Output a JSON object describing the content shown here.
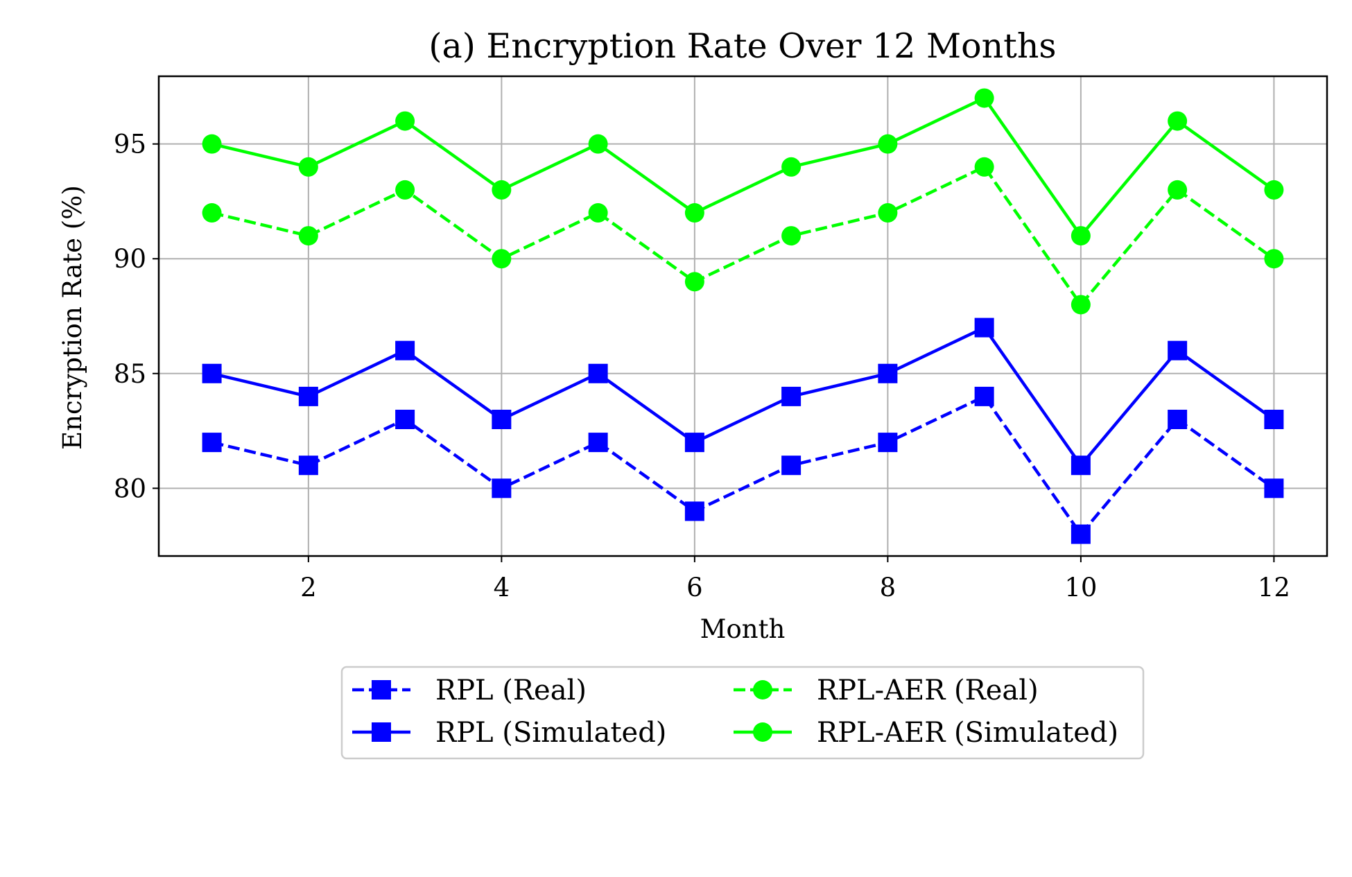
{
  "chart_data": {
    "type": "line",
    "title": "(a) Encryption Rate Over 12 Months",
    "xlabel": "Month",
    "ylabel": "Encryption Rate (%)",
    "x": [
      1,
      2,
      3,
      4,
      5,
      6,
      7,
      8,
      9,
      10,
      11,
      12
    ],
    "xlim": [
      0.45,
      12.55
    ],
    "ylim": [
      77.05,
      97.95
    ],
    "xticks": [
      2,
      4,
      6,
      8,
      10,
      12
    ],
    "yticks": [
      80,
      85,
      90,
      95
    ],
    "grid": true,
    "legend_position": "below the plot, two columns",
    "series": [
      {
        "name": "RPL (Real)",
        "color": "#0000ff",
        "line": "dashed",
        "marker": "square",
        "values": [
          82,
          81,
          83,
          80,
          82,
          79,
          81,
          82,
          84,
          78,
          83,
          80
        ]
      },
      {
        "name": "RPL (Simulated)",
        "color": "#0000ff",
        "line": "solid",
        "marker": "square",
        "values": [
          85,
          84,
          86,
          83,
          85,
          82,
          84,
          85,
          87,
          81,
          86,
          83
        ]
      },
      {
        "name": "RPL-AER (Real)",
        "color": "#00ff00",
        "line": "dashed",
        "marker": "circle",
        "values": [
          92,
          91,
          93,
          90,
          92,
          89,
          91,
          92,
          94,
          88,
          93,
          90
        ]
      },
      {
        "name": "RPL-AER (Simulated)",
        "color": "#00ff00",
        "line": "solid",
        "marker": "circle",
        "values": [
          95,
          94,
          96,
          93,
          95,
          92,
          94,
          95,
          97,
          91,
          96,
          93
        ]
      }
    ]
  }
}
